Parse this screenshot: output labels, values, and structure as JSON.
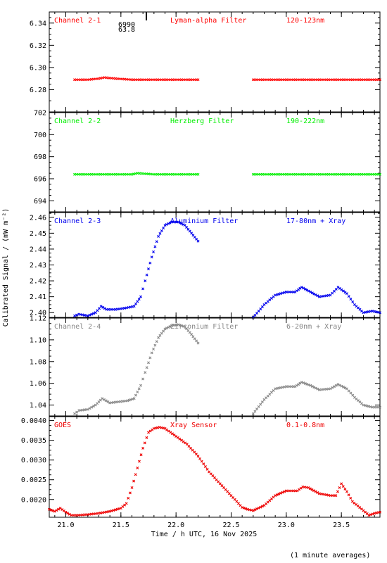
{
  "footer_note": "(1 minute averages)",
  "chart_data": [
    {
      "type": "scatter",
      "channel": "Channel 2-1",
      "filter": "Lyman-alpha Filter",
      "band": "120-123nm",
      "color": "#ff0000",
      "ylim": [
        6.26,
        6.35
      ],
      "yticks": [
        "6.28",
        "6.30",
        "6.32",
        "6.34"
      ],
      "ytick_values": [
        6.28,
        6.3,
        6.32,
        6.34
      ],
      "annotation_top": "6990",
      "annotation_bottom": "63.8",
      "series": [
        {
          "x": [
            21.08,
            21.2,
            21.3,
            21.35,
            21.45,
            21.6,
            21.8,
            22.0,
            22.2
          ],
          "y": [
            6.289,
            6.289,
            6.29,
            6.291,
            6.29,
            6.289,
            6.289,
            6.289,
            6.289
          ]
        },
        {
          "x": [
            22.7,
            23.0,
            23.3,
            23.6,
            23.85
          ],
          "y": [
            6.289,
            6.289,
            6.289,
            6.289,
            6.289
          ]
        }
      ]
    },
    {
      "type": "scatter",
      "channel": "Channel 2-2",
      "filter": "Herzberg Filter",
      "band": "190-222nm",
      "color": "#00ee00",
      "ylim": [
        693,
        702
      ],
      "yticks": [
        "694",
        "696",
        "698",
        "700",
        "702"
      ],
      "ytick_values": [
        694,
        696,
        698,
        700,
        702
      ],
      "series": [
        {
          "x": [
            21.08,
            21.3,
            21.6,
            21.65,
            21.8,
            22.0,
            22.2
          ],
          "y": [
            696.4,
            696.4,
            696.4,
            696.5,
            696.4,
            696.4,
            696.4
          ]
        },
        {
          "x": [
            22.7,
            23.0,
            23.3,
            23.6,
            23.85
          ],
          "y": [
            696.4,
            696.4,
            696.4,
            696.4,
            696.4
          ]
        }
      ]
    },
    {
      "type": "scatter",
      "channel": "Channel 2-3",
      "filter": "Aluminium Filter",
      "band": "17-80nm + Xray",
      "color": "#0000ee",
      "ylim": [
        2.397,
        2.463
      ],
      "yticks": [
        "2.40",
        "2.41",
        "2.42",
        "2.43",
        "2.44",
        "2.45",
        "2.46"
      ],
      "ytick_values": [
        2.4,
        2.41,
        2.42,
        2.43,
        2.44,
        2.45,
        2.46
      ],
      "ylabel": "Calibrated Signal / (mW m⁻²)",
      "series": [
        {
          "x": [
            21.08,
            21.12,
            21.2,
            21.27,
            21.32,
            21.37,
            21.45,
            21.55,
            21.62,
            21.68,
            21.72,
            21.78,
            21.84,
            21.9,
            21.96,
            22.02,
            22.08,
            22.14,
            22.2
          ],
          "y": [
            2.398,
            2.399,
            2.398,
            2.4,
            2.404,
            2.402,
            2.402,
            2.403,
            2.404,
            2.41,
            2.42,
            2.435,
            2.448,
            2.455,
            2.457,
            2.457,
            2.455,
            2.45,
            2.445
          ]
        },
        {
          "x": [
            22.7,
            22.8,
            22.9,
            23.0,
            23.08,
            23.14,
            23.22,
            23.3,
            23.4,
            23.47,
            23.55,
            23.62,
            23.7,
            23.78,
            23.85
          ],
          "y": [
            2.397,
            2.405,
            2.411,
            2.413,
            2.413,
            2.416,
            2.413,
            2.41,
            2.411,
            2.416,
            2.412,
            2.405,
            2.4,
            2.401,
            2.4
          ]
        }
      ]
    },
    {
      "type": "scatter",
      "channel": "Channel 2-4",
      "filter": "Zirconium Filter",
      "band": "6-20nm + Xray",
      "color": "#888888",
      "ylim": [
        1.03,
        1.12
      ],
      "yticks": [
        "1.04",
        "1.06",
        "1.08",
        "1.10",
        "1.12"
      ],
      "ytick_values": [
        1.04,
        1.06,
        1.08,
        1.1,
        1.12
      ],
      "series": [
        {
          "x": [
            21.08,
            21.12,
            21.2,
            21.27,
            21.33,
            21.4,
            21.48,
            21.56,
            21.62,
            21.68,
            21.72,
            21.78,
            21.84,
            21.9,
            21.96,
            22.02,
            22.08,
            22.14,
            22.2
          ],
          "y": [
            1.032,
            1.035,
            1.036,
            1.04,
            1.046,
            1.042,
            1.043,
            1.044,
            1.046,
            1.058,
            1.07,
            1.088,
            1.102,
            1.11,
            1.113,
            1.114,
            1.112,
            1.105,
            1.097
          ]
        },
        {
          "x": [
            22.7,
            22.8,
            22.9,
            23.0,
            23.08,
            23.14,
            23.22,
            23.3,
            23.4,
            23.47,
            23.55,
            23.62,
            23.7,
            23.78,
            23.85
          ],
          "y": [
            1.032,
            1.045,
            1.055,
            1.057,
            1.057,
            1.061,
            1.058,
            1.054,
            1.055,
            1.059,
            1.055,
            1.047,
            1.04,
            1.038,
            1.038
          ]
        }
      ]
    },
    {
      "type": "scatter",
      "channel": "GOES",
      "filter": "Xray Sensor",
      "band": "0.1-0.8nm",
      "color": "#ee0000",
      "ylim": [
        0.00155,
        0.0041
      ],
      "yticks": [
        "0.0020",
        "0.0025",
        "0.0030",
        "0.0035",
        "0.0040"
      ],
      "ytick_values": [
        0.002,
        0.0025,
        0.003,
        0.0035,
        0.004
      ],
      "xlabel": "Time / h UTC, 16 Nov 2025",
      "xlim": [
        20.85,
        23.85
      ],
      "xticks": [
        "21.0",
        "21.5",
        "22.0",
        "22.5",
        "23.0",
        "23.5"
      ],
      "xtick_values": [
        21.0,
        21.5,
        22.0,
        22.5,
        23.0,
        23.5
      ],
      "series": [
        {
          "x": [
            20.85,
            20.9,
            20.95,
            21.0,
            21.05,
            21.1,
            21.2,
            21.3,
            21.4,
            21.5,
            21.55,
            21.6,
            21.65,
            21.7,
            21.75,
            21.8,
            21.85,
            21.9,
            22.0,
            22.1,
            22.2,
            22.3,
            22.4,
            22.5,
            22.6,
            22.65,
            22.7,
            22.8,
            22.9,
            23.0,
            23.1,
            23.15,
            23.2,
            23.3,
            23.4,
            23.45,
            23.5,
            23.55,
            23.6,
            23.7,
            23.75,
            23.8,
            23.85
          ],
          "y": [
            0.00175,
            0.0017,
            0.00178,
            0.00168,
            0.0016,
            0.0016,
            0.00162,
            0.00165,
            0.0017,
            0.00178,
            0.0019,
            0.0023,
            0.0028,
            0.0033,
            0.0037,
            0.0038,
            0.00383,
            0.0038,
            0.0036,
            0.0034,
            0.0031,
            0.0027,
            0.0024,
            0.0021,
            0.0018,
            0.00175,
            0.00172,
            0.00185,
            0.0021,
            0.00222,
            0.00222,
            0.00232,
            0.0023,
            0.00215,
            0.0021,
            0.0021,
            0.0024,
            0.0022,
            0.00195,
            0.00172,
            0.0016,
            0.00165,
            0.00168
          ]
        }
      ]
    }
  ]
}
